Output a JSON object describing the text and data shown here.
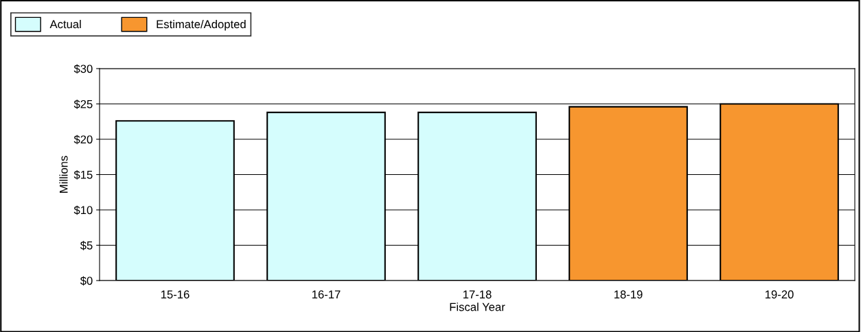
{
  "chart_data": {
    "type": "bar",
    "xlabel": "Fiscal Year",
    "ylabel": "Millions",
    "categories": [
      "15-16",
      "16-17",
      "17-18",
      "18-19",
      "19-20"
    ],
    "series": [
      {
        "name": "Actual",
        "color": "#d5fdfd",
        "values": [
          22.6,
          23.8,
          23.8,
          null,
          null
        ]
      },
      {
        "name": "Estimate/Adopted",
        "color": "#f7962f",
        "values": [
          null,
          null,
          null,
          24.6,
          25.0
        ]
      }
    ],
    "ylim": [
      0,
      30
    ],
    "yticks": [
      {
        "value": 0,
        "label": "$0"
      },
      {
        "value": 5,
        "label": "$5"
      },
      {
        "value": 10,
        "label": "$10"
      },
      {
        "value": 15,
        "label": "$15"
      },
      {
        "value": 20,
        "label": "$20"
      },
      {
        "value": 25,
        "label": "$25"
      },
      {
        "value": 30,
        "label": "$30"
      }
    ],
    "grid": "y",
    "legend": "top left"
  }
}
